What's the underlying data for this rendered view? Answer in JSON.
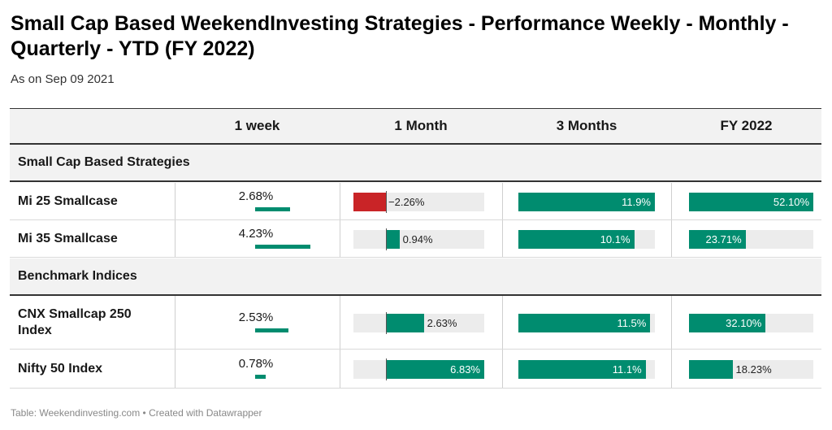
{
  "title": "Small Cap Based WeekendInvesting Strategies - Performance Weekly - Monthly - Quarterly - YTD (FY 2022)",
  "subtitle": "As on Sep 09 2021",
  "columns": [
    "",
    "1 week",
    "1 Month",
    "3 Months",
    "FY 2022"
  ],
  "groups": [
    {
      "label": "Small Cap Based Strategies",
      "rows": [
        {
          "name": "Mi 25 Smallcase",
          "week": 2.68,
          "week_label": "2.68%",
          "month": -2.26,
          "month_label": "−2.26%",
          "quarter": 11.9,
          "quarter_label": "11.9%",
          "fy": 52.1,
          "fy_label": "52.10%"
        },
        {
          "name": "Mi 35 Smallcase",
          "week": 4.23,
          "week_label": "4.23%",
          "month": 0.94,
          "month_label": "0.94%",
          "quarter": 10.1,
          "quarter_label": "10.1%",
          "fy": 23.71,
          "fy_label": "23.71%"
        }
      ]
    },
    {
      "label": "Benchmark Indices",
      "rows": [
        {
          "name": "CNX Smallcap 250 Index",
          "week": 2.53,
          "week_label": "2.53%",
          "month": 2.63,
          "month_label": "2.63%",
          "quarter": 11.5,
          "quarter_label": "11.5%",
          "fy": 32.1,
          "fy_label": "32.10%"
        },
        {
          "name": "Nifty 50 Index",
          "week": 0.78,
          "week_label": "0.78%",
          "month": 6.83,
          "month_label": "6.83%",
          "quarter": 11.1,
          "quarter_label": "11.1%",
          "fy": 18.23,
          "fy_label": "18.23%"
        }
      ]
    }
  ],
  "scales": {
    "week_max": 4.23,
    "month_min": -2.26,
    "month_max": 6.83,
    "quarter_max": 11.9,
    "fy_max": 52.1
  },
  "colors": {
    "positive": "#008c6f",
    "negative": "#c92427",
    "track": "#ececec"
  },
  "footer": "Table: Weekendinvesting.com • Created with Datawrapper"
}
